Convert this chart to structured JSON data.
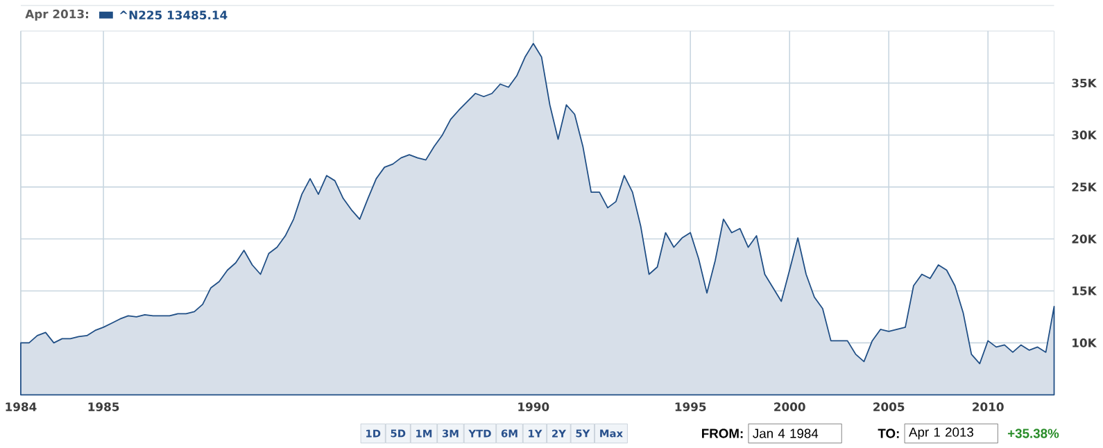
{
  "chart_data": {
    "type": "area",
    "categories": [
      "1984",
      null,
      null,
      null,
      null,
      null,
      null,
      null,
      null,
      null,
      "1985",
      null,
      null,
      null,
      null,
      null,
      null,
      null,
      null,
      null,
      null,
      null,
      null,
      null,
      null,
      null,
      null,
      null,
      null,
      null,
      null,
      null,
      null,
      null,
      null,
      null,
      null,
      null,
      null,
      null,
      null,
      null,
      null,
      null,
      null,
      null,
      null,
      null,
      null,
      null,
      null,
      null,
      null,
      null,
      null,
      null,
      null,
      null,
      null,
      null,
      null,
      null,
      "1990",
      null,
      null,
      null,
      null,
      null,
      null,
      null,
      null,
      null,
      null,
      null,
      null,
      null,
      null,
      null,
      null,
      null,
      null,
      "1995",
      null,
      null,
      null,
      null,
      null,
      null,
      null,
      null,
      null,
      null,
      null,
      "2000",
      null,
      null,
      null,
      null,
      null,
      null,
      null,
      null,
      null,
      null,
      null,
      "2005",
      null,
      null,
      null,
      null,
      null,
      null,
      null,
      null,
      null,
      null,
      null,
      "2010",
      null,
      null,
      null,
      null,
      null,
      null,
      null,
      null
    ],
    "series": [
      {
        "name": "^N225 13485.14",
        "color": "#1f4e85",
        "values": [
          10000,
          10000,
          10700,
          11000,
          10000,
          10400,
          10400,
          10600,
          10700,
          11200,
          11500,
          11900,
          12300,
          12600,
          12500,
          12700,
          12600,
          12600,
          12600,
          12800,
          12800,
          13000,
          13700,
          15300,
          15900,
          17000,
          17700,
          18900,
          17500,
          16600,
          18600,
          19200,
          20300,
          21900,
          24300,
          25800,
          24300,
          26100,
          25600,
          23900,
          22800,
          21900,
          23900,
          25800,
          26900,
          27200,
          27800,
          28100,
          27800,
          27600,
          28900,
          30000,
          31500,
          32400,
          33200,
          34000,
          33700,
          34000,
          34900,
          34600,
          35700,
          37500,
          38800,
          37500,
          32900,
          29600,
          32900,
          32000,
          28900,
          24500,
          24500,
          23000,
          23600,
          26100,
          24500,
          21200,
          16600,
          17300,
          20600,
          19200,
          20100,
          20600,
          18100,
          14800,
          17900,
          21900,
          20600,
          21000,
          19200,
          20300,
          16600,
          15300,
          14000,
          17000,
          20100,
          16600,
          14400,
          13300,
          10200,
          10200,
          10200,
          8900,
          8200,
          10200,
          11300,
          11100,
          11300,
          11500,
          15500,
          16600,
          16200,
          17500,
          17000,
          15500,
          12900,
          8900,
          8000,
          10200,
          9600,
          9800,
          9100,
          9800,
          9300,
          9600,
          9100,
          13500
        ]
      }
    ],
    "legend_title": "Apr 2013:",
    "legend": "top left",
    "ylim": [
      5000,
      40000
    ],
    "yticks": [
      {
        "value": 10000,
        "label": "10K"
      },
      {
        "value": 15000,
        "label": "15K"
      },
      {
        "value": 20000,
        "label": "20K"
      },
      {
        "value": 25000,
        "label": "25K"
      },
      {
        "value": 30000,
        "label": "30K"
      },
      {
        "value": 35000,
        "label": "35K"
      }
    ],
    "grid": true,
    "annotations": [
      "1D",
      "5D",
      "1M",
      "3M",
      "YTD",
      "6M",
      "1Y",
      "2Y",
      "5Y",
      "Max",
      "FROM:",
      "Jan 4 1984",
      "TO:",
      "Apr 1 2013",
      "+35.38%"
    ]
  }
}
